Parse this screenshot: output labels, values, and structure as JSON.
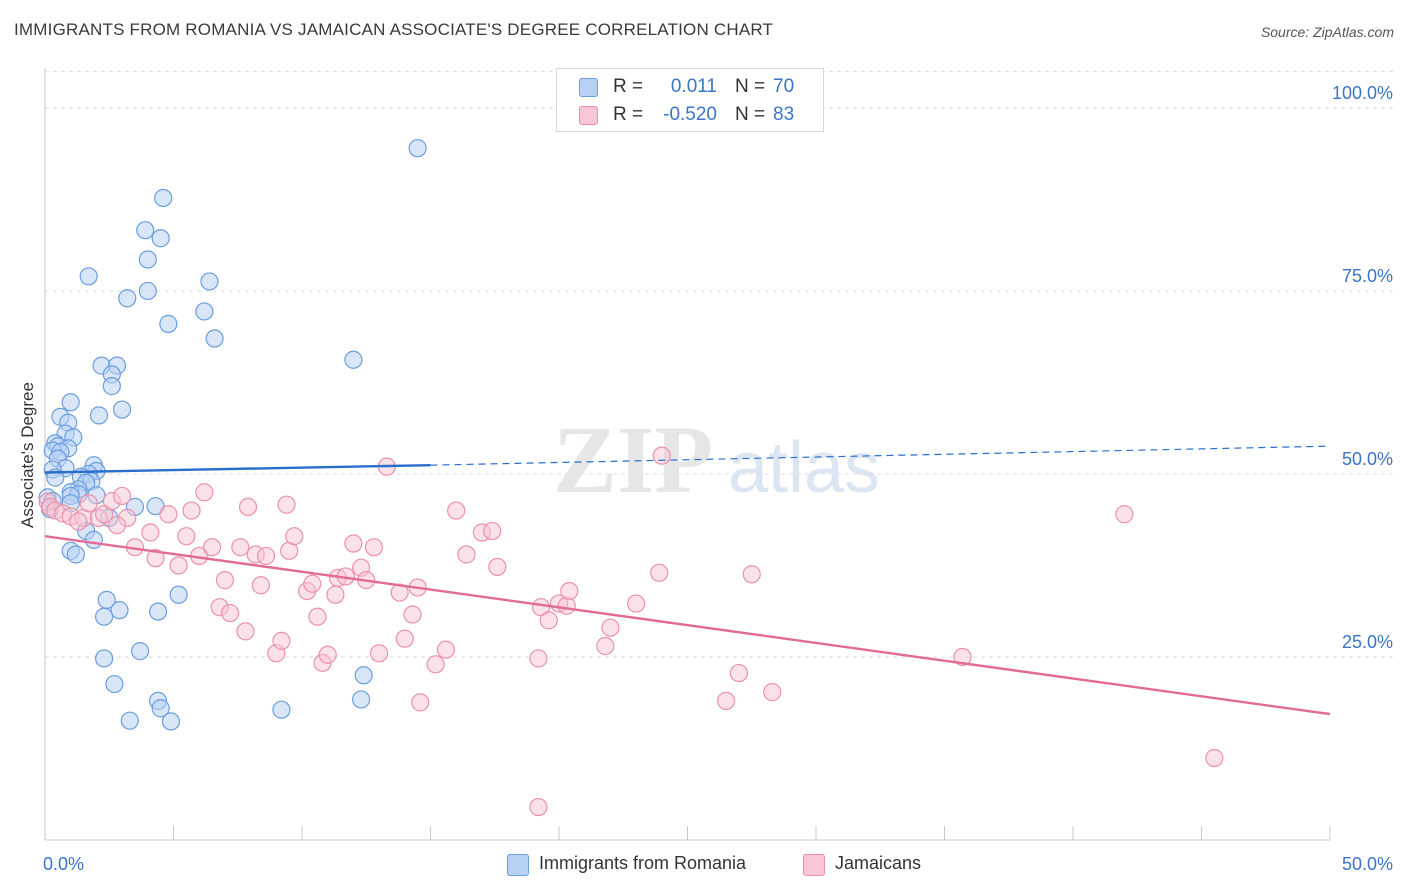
{
  "header": {
    "title": "IMMIGRANTS FROM ROMANIA VS JAMAICAN ASSOCIATE'S DEGREE CORRELATION CHART",
    "source": "Source: ZipAtlas.com"
  },
  "legend": {
    "rows": [
      {
        "r_label": "R =",
        "r_value": "0.011",
        "n_label": "N =",
        "n_value": "70",
        "color": "#a9c8f0"
      },
      {
        "r_label": "R =",
        "r_value": "-0.520",
        "n_label": "N =",
        "n_value": "83",
        "color": "#f6b9cb"
      }
    ]
  },
  "bottom_legend": {
    "series1": "Immigrants from Romania",
    "series2": "Jamaicans"
  },
  "watermark": {
    "zip": "ZIP",
    "atlas": "atlas"
  },
  "colors": {
    "blue_stroke": "#6a9ee0",
    "blue_fill": "#b8d2f3",
    "blue_line": "#2a6fcc",
    "pink_stroke": "#ec90ab",
    "pink_fill": "#f8c6d4",
    "pink_line": "#e26b95",
    "tick_text": "#3b74c8"
  },
  "chart_data": {
    "type": "scatter",
    "title": "IMMIGRANTS FROM ROMANIA VS JAMAICAN ASSOCIATE'S DEGREE CORRELATION CHART",
    "xlabel": "",
    "ylabel": "Associate's Degree",
    "xlim": [
      0,
      50
    ],
    "ylim": [
      0,
      106
    ],
    "x_tick_labels": [
      "0.0%",
      "50.0%"
    ],
    "y_ticks": [
      25,
      50,
      75,
      100
    ],
    "y_tick_labels": [
      "25.0%",
      "50.0%",
      "75.0%",
      "100.0%"
    ],
    "grid": true,
    "legend_position": "top-center",
    "series": [
      {
        "name": "Immigrants from Romania",
        "r": 0.011,
        "n": 70,
        "trend": {
          "x0": 0,
          "y0": 50.2,
          "x1": 15,
          "y1": 51.2,
          "dashed_to_x": 50,
          "dashed_to_y": 53.8
        },
        "points": [
          [
            14.5,
            94.5
          ],
          [
            4.6,
            87.7
          ],
          [
            3.9,
            83.3
          ],
          [
            4.5,
            82.2
          ],
          [
            1.7,
            77.0
          ],
          [
            4.0,
            79.3
          ],
          [
            6.4,
            76.3
          ],
          [
            3.2,
            74.0
          ],
          [
            4.0,
            75.0
          ],
          [
            6.2,
            72.2
          ],
          [
            4.8,
            70.5
          ],
          [
            6.6,
            68.5
          ],
          [
            12.0,
            65.6
          ],
          [
            2.2,
            64.8
          ],
          [
            2.8,
            64.8
          ],
          [
            2.6,
            63.6
          ],
          [
            2.6,
            62.0
          ],
          [
            1.0,
            59.8
          ],
          [
            3.0,
            58.8
          ],
          [
            2.1,
            58.0
          ],
          [
            0.6,
            57.8
          ],
          [
            0.9,
            57.0
          ],
          [
            0.8,
            55.5
          ],
          [
            1.1,
            55.0
          ],
          [
            0.4,
            54.2
          ],
          [
            0.5,
            53.8
          ],
          [
            0.9,
            53.5
          ],
          [
            0.3,
            53.2
          ],
          [
            0.6,
            53.0
          ],
          [
            0.5,
            52.1
          ],
          [
            1.9,
            51.2
          ],
          [
            0.8,
            50.8
          ],
          [
            0.3,
            50.6
          ],
          [
            2.0,
            50.4
          ],
          [
            1.7,
            50.0
          ],
          [
            1.4,
            49.6
          ],
          [
            0.4,
            49.5
          ],
          [
            1.8,
            49.0
          ],
          [
            1.6,
            48.8
          ],
          [
            1.3,
            47.9
          ],
          [
            1.0,
            47.5
          ],
          [
            1.3,
            47.2
          ],
          [
            1.0,
            47.0
          ],
          [
            2.0,
            47.1
          ],
          [
            0.1,
            46.8
          ],
          [
            0.3,
            46.3
          ],
          [
            1.0,
            46.0
          ],
          [
            0.2,
            45.2
          ],
          [
            4.3,
            45.6
          ],
          [
            3.5,
            45.5
          ],
          [
            2.5,
            44.0
          ],
          [
            1.6,
            42.2
          ],
          [
            1.9,
            41.0
          ],
          [
            1.0,
            39.5
          ],
          [
            1.2,
            39.0
          ],
          [
            5.2,
            33.5
          ],
          [
            2.4,
            32.8
          ],
          [
            2.9,
            31.4
          ],
          [
            4.4,
            31.2
          ],
          [
            2.3,
            30.5
          ],
          [
            3.7,
            25.8
          ],
          [
            2.3,
            24.8
          ],
          [
            12.4,
            22.5
          ],
          [
            2.7,
            21.3
          ],
          [
            4.4,
            19.0
          ],
          [
            12.3,
            19.2
          ],
          [
            4.5,
            18.0
          ],
          [
            9.2,
            17.8
          ],
          [
            3.3,
            16.3
          ],
          [
            4.9,
            16.2
          ]
        ]
      },
      {
        "name": "Jamaicans",
        "r": -0.52,
        "n": 83,
        "trend": {
          "x0": 0,
          "y0": 41.5,
          "x1": 50,
          "y1": 17.2
        },
        "points": [
          [
            0.1,
            46.2
          ],
          [
            0.2,
            45.5
          ],
          [
            0.4,
            45.0
          ],
          [
            0.7,
            44.6
          ],
          [
            1.0,
            44.2
          ],
          [
            1.5,
            44.0
          ],
          [
            1.7,
            46.0
          ],
          [
            2.1,
            44.0
          ],
          [
            2.3,
            44.5
          ],
          [
            2.6,
            46.3
          ],
          [
            3.2,
            44.0
          ],
          [
            2.8,
            43.0
          ],
          [
            3.5,
            40.0
          ],
          [
            4.1,
            42.0
          ],
          [
            4.3,
            38.5
          ],
          [
            4.8,
            44.5
          ],
          [
            5.2,
            37.5
          ],
          [
            5.5,
            41.5
          ],
          [
            6.0,
            38.8
          ],
          [
            6.2,
            47.5
          ],
          [
            6.5,
            40.0
          ],
          [
            6.8,
            31.8
          ],
          [
            7.0,
            35.5
          ],
          [
            7.2,
            31.0
          ],
          [
            7.6,
            40.0
          ],
          [
            7.8,
            28.5
          ],
          [
            7.9,
            45.5
          ],
          [
            8.2,
            39.0
          ],
          [
            8.4,
            34.8
          ],
          [
            8.6,
            38.8
          ],
          [
            9.0,
            25.5
          ],
          [
            9.2,
            27.2
          ],
          [
            9.5,
            39.5
          ],
          [
            9.7,
            41.5
          ],
          [
            10.2,
            34.0
          ],
          [
            10.4,
            35.0
          ],
          [
            10.6,
            30.5
          ],
          [
            10.8,
            24.2
          ],
          [
            11.0,
            25.3
          ],
          [
            11.4,
            35.8
          ],
          [
            11.7,
            36.0
          ],
          [
            12.0,
            40.5
          ],
          [
            12.3,
            37.2
          ],
          [
            12.5,
            35.5
          ],
          [
            12.8,
            40.0
          ],
          [
            13.0,
            25.5
          ],
          [
            13.3,
            51.0
          ],
          [
            13.8,
            33.8
          ],
          [
            14.3,
            30.8
          ],
          [
            14.5,
            34.5
          ],
          [
            14.6,
            18.8
          ],
          [
            15.2,
            24.0
          ],
          [
            15.6,
            26.0
          ],
          [
            16.4,
            39.0
          ],
          [
            17.0,
            42.0
          ],
          [
            17.4,
            42.2
          ],
          [
            17.6,
            37.3
          ],
          [
            19.2,
            24.8
          ],
          [
            19.3,
            31.8
          ],
          [
            19.6,
            30.0
          ],
          [
            20.0,
            32.3
          ],
          [
            20.3,
            32.0
          ],
          [
            20.4,
            34.0
          ],
          [
            21.8,
            26.5
          ],
          [
            23.0,
            32.3
          ],
          [
            23.9,
            36.5
          ],
          [
            24.0,
            52.5
          ],
          [
            26.5,
            19.0
          ],
          [
            27.0,
            22.8
          ],
          [
            27.5,
            36.3
          ],
          [
            28.3,
            20.2
          ],
          [
            35.7,
            25.0
          ],
          [
            42.0,
            44.5
          ],
          [
            45.5,
            11.2
          ],
          [
            19.2,
            4.5
          ],
          [
            9.4,
            45.8
          ],
          [
            3.0,
            47.0
          ],
          [
            1.3,
            43.5
          ],
          [
            5.7,
            45.0
          ],
          [
            11.3,
            33.5
          ],
          [
            14.0,
            27.5
          ],
          [
            16.0,
            45.0
          ],
          [
            22.0,
            29.0
          ]
        ]
      }
    ]
  }
}
